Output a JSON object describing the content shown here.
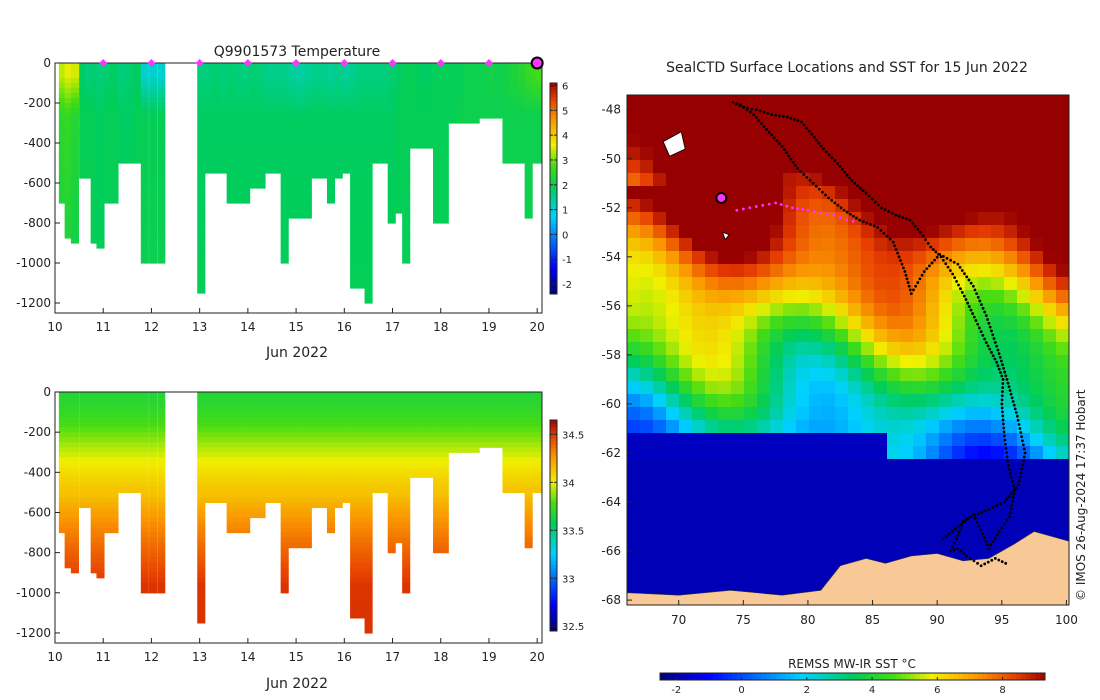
{
  "credit": "© IMOS 26-Aug-2024 17:37 Hobart",
  "colors": {
    "land": "#f8c997",
    "no_data": "#ffffff"
  },
  "chart_data": [
    {
      "type": "heatmap",
      "panel": "temperature-section",
      "title": "Q9901573  Temperature",
      "xlabel": "Jun 2022",
      "ylabel": "",
      "x_ticks": [
        "10",
        "11",
        "12",
        "13",
        "14",
        "15",
        "16",
        "17",
        "18",
        "19",
        "20"
      ],
      "xlim": [
        10,
        20.1
      ],
      "y_ticks": [
        "0",
        "-200",
        "-400",
        "-600",
        "-800",
        "-1000",
        "-1200"
      ],
      "ylim": [
        -1250,
        0
      ],
      "colorbar": {
        "ticks": [
          "6",
          "5",
          "4",
          "3",
          "2",
          "1",
          "0",
          "-1",
          "-2"
        ],
        "range": [
          -2.4,
          6.1
        ],
        "colormap": "jet"
      },
      "marker_days": [
        11,
        12,
        13,
        14,
        15,
        16,
        17,
        18,
        19
      ],
      "marker_color": "#ff33ff",
      "current_day": 20,
      "profiles": [
        {
          "t": 10.08,
          "depth": 700,
          "top": 3.3,
          "mid": 2.4,
          "bot": 2.1
        },
        {
          "t": 10.2,
          "depth": 870,
          "top": 3.5,
          "mid": 2.5,
          "bot": 2.1
        },
        {
          "t": 10.33,
          "depth": 900,
          "top": 3.4,
          "mid": 2.3,
          "bot": 2.0
        },
        {
          "t": 10.5,
          "depth": 560,
          "top": 1.8,
          "mid": 1.9,
          "bot": 2.0
        },
        {
          "t": 10.62,
          "depth": 560,
          "top": 1.6,
          "mid": 1.9,
          "bot": 2.0
        },
        {
          "t": 10.74,
          "depth": 880,
          "top": 1.7,
          "mid": 1.9,
          "bot": 1.9
        },
        {
          "t": 10.86,
          "depth": 910,
          "top": 1.6,
          "mid": 1.8,
          "bot": 1.9
        },
        {
          "t": 11.0,
          "depth": 700,
          "top": 1.7,
          "mid": 1.9,
          "bot": 1.9
        },
        {
          "t": 11.15,
          "depth": 700,
          "top": 1.8,
          "mid": 1.9,
          "bot": 1.9
        },
        {
          "t": 11.3,
          "depth": 500,
          "top": 1.6,
          "mid": 1.8,
          "bot": 1.9
        },
        {
          "t": 11.46,
          "depth": 500,
          "top": 1.7,
          "mid": 1.8,
          "bot": 1.9
        },
        {
          "t": 11.62,
          "depth": 480,
          "top": 1.8,
          "mid": 1.9,
          "bot": 1.9
        },
        {
          "t": 11.78,
          "depth": 1000,
          "top": 1.0,
          "mid": 1.9,
          "bot": 2.0
        },
        {
          "t": 11.95,
          "depth": 1000,
          "top": 1.0,
          "mid": 1.9,
          "bot": 2.0
        },
        {
          "t": 12.12,
          "depth": 1000,
          "top": 1.0,
          "mid": 1.9,
          "bot": 2.0
        },
        {
          "t": 12.95,
          "depth": 1130,
          "top": 1.6,
          "mid": 1.8,
          "bot": 1.9
        },
        {
          "t": 13.1,
          "depth": 530,
          "top": 1.6,
          "mid": 1.8,
          "bot": 1.9
        },
        {
          "t": 13.25,
          "depth": 530,
          "top": 1.7,
          "mid": 1.8,
          "bot": 1.9
        },
        {
          "t": 13.4,
          "depth": 550,
          "top": 1.6,
          "mid": 1.8,
          "bot": 1.9
        },
        {
          "t": 13.56,
          "depth": 700,
          "top": 1.7,
          "mid": 1.8,
          "bot": 1.9
        },
        {
          "t": 13.72,
          "depth": 700,
          "top": 1.6,
          "mid": 1.8,
          "bot": 1.9
        },
        {
          "t": 13.88,
          "depth": 700,
          "top": 1.6,
          "mid": 1.8,
          "bot": 1.9
        },
        {
          "t": 14.04,
          "depth": 620,
          "top": 1.7,
          "mid": 1.8,
          "bot": 1.9
        },
        {
          "t": 14.2,
          "depth": 620,
          "top": 1.6,
          "mid": 1.8,
          "bot": 1.9
        },
        {
          "t": 14.36,
          "depth": 550,
          "top": 1.5,
          "mid": 1.8,
          "bot": 1.9
        },
        {
          "t": 14.52,
          "depth": 550,
          "top": 1.5,
          "mid": 1.8,
          "bot": 1.9
        },
        {
          "t": 14.68,
          "depth": 1000,
          "top": 1.5,
          "mid": 1.8,
          "bot": 1.9
        },
        {
          "t": 14.84,
          "depth": 770,
          "top": 1.4,
          "mid": 1.8,
          "bot": 1.9
        },
        {
          "t": 15.0,
          "depth": 770,
          "top": 1.3,
          "mid": 1.8,
          "bot": 1.9
        },
        {
          "t": 15.16,
          "depth": 770,
          "top": 1.4,
          "mid": 1.8,
          "bot": 1.9
        },
        {
          "t": 15.32,
          "depth": 560,
          "top": 1.5,
          "mid": 1.8,
          "bot": 1.9
        },
        {
          "t": 15.48,
          "depth": 560,
          "top": 1.5,
          "mid": 1.8,
          "bot": 1.9
        },
        {
          "t": 15.64,
          "depth": 700,
          "top": 1.4,
          "mid": 1.8,
          "bot": 1.9
        },
        {
          "t": 15.8,
          "depth": 560,
          "top": 1.5,
          "mid": 1.8,
          "bot": 1.9
        },
        {
          "t": 15.96,
          "depth": 540,
          "top": 1.4,
          "mid": 1.8,
          "bot": 1.9
        },
        {
          "t": 16.12,
          "depth": 1120,
          "top": 1.5,
          "mid": 1.8,
          "bot": 1.9
        },
        {
          "t": 16.28,
          "depth": 1120,
          "top": 1.6,
          "mid": 1.8,
          "bot": 1.9
        },
        {
          "t": 16.42,
          "depth": 1200,
          "top": 1.6,
          "mid": 1.8,
          "bot": 1.9
        },
        {
          "t": 16.58,
          "depth": 500,
          "top": 1.6,
          "mid": 1.8,
          "bot": 1.9
        },
        {
          "t": 16.74,
          "depth": 500,
          "top": 1.6,
          "mid": 1.8,
          "bot": 1.9
        },
        {
          "t": 16.9,
          "depth": 780,
          "top": 1.7,
          "mid": 1.8,
          "bot": 1.9
        },
        {
          "t": 17.06,
          "depth": 750,
          "top": 1.8,
          "mid": 1.9,
          "bot": 1.9
        },
        {
          "t": 17.2,
          "depth": 990,
          "top": 1.9,
          "mid": 1.9,
          "bot": 1.9
        },
        {
          "t": 17.36,
          "depth": 420,
          "top": 1.9,
          "mid": 1.9,
          "bot": 1.9
        },
        {
          "t": 17.52,
          "depth": 420,
          "top": 1.8,
          "mid": 1.9,
          "bot": 1.9
        },
        {
          "t": 17.68,
          "depth": 420,
          "top": 1.8,
          "mid": 1.9,
          "bot": 1.9
        },
        {
          "t": 17.84,
          "depth": 800,
          "top": 1.9,
          "mid": 1.9,
          "bot": 1.9
        },
        {
          "t": 18.0,
          "depth": 800,
          "top": 1.9,
          "mid": 1.9,
          "bot": 1.9
        },
        {
          "t": 18.16,
          "depth": 300,
          "top": 1.9,
          "mid": 1.9,
          "bot": 1.9
        },
        {
          "t": 18.32,
          "depth": 300,
          "top": 1.9,
          "mid": 2.0,
          "bot": 2.0
        },
        {
          "t": 18.48,
          "depth": 300,
          "top": 2.0,
          "mid": 2.0,
          "bot": 2.0
        },
        {
          "t": 18.64,
          "depth": 280,
          "top": 2.0,
          "mid": 2.0,
          "bot": 2.0
        },
        {
          "t": 18.8,
          "depth": 260,
          "top": 2.0,
          "mid": 2.0,
          "bot": 2.0
        },
        {
          "t": 18.96,
          "depth": 260,
          "top": 2.1,
          "mid": 2.0,
          "bot": 2.0
        },
        {
          "t": 19.12,
          "depth": 260,
          "top": 2.0,
          "mid": 2.0,
          "bot": 2.0
        },
        {
          "t": 19.28,
          "depth": 480,
          "top": 2.1,
          "mid": 2.0,
          "bot": 2.0
        },
        {
          "t": 19.44,
          "depth": 480,
          "top": 2.2,
          "mid": 2.0,
          "bot": 2.0
        },
        {
          "t": 19.6,
          "depth": 500,
          "top": 2.3,
          "mid": 2.0,
          "bot": 2.0
        },
        {
          "t": 19.74,
          "depth": 770,
          "top": 2.5,
          "mid": 2.0,
          "bot": 2.0
        },
        {
          "t": 19.88,
          "depth": 500,
          "top": 2.6,
          "mid": 2.0,
          "bot": 2.0
        },
        {
          "t": 20.0,
          "depth": 500,
          "top": 2.7,
          "mid": 2.0,
          "bot": 2.0
        }
      ]
    },
    {
      "type": "heatmap",
      "panel": "salinity-section",
      "title": "",
      "xlabel": "Jun 2022",
      "ylabel": "",
      "x_ticks": [
        "10",
        "11",
        "12",
        "13",
        "14",
        "15",
        "16",
        "17",
        "18",
        "19",
        "20"
      ],
      "xlim": [
        10,
        20.1
      ],
      "y_ticks": [
        "0",
        "-200",
        "-400",
        "-600",
        "-800",
        "-1000",
        "-1200"
      ],
      "ylim": [
        -1250,
        0
      ],
      "colorbar": {
        "ticks": [
          "34.5",
          "34",
          "33.5",
          "33",
          "32.5"
        ],
        "range": [
          32.45,
          34.65
        ],
        "colormap": "jet"
      },
      "profile_source": "temperature-section",
      "salinity_profile": {
        "surface": 33.6,
        "halocline_depth": 260,
        "deep": 34.2
      }
    },
    {
      "type": "heatmap",
      "panel": "sst-map",
      "title": "SealCTD Surface Locations and SST for 15 Jun 2022",
      "xlabel": "",
      "ylabel": "",
      "x_ticks": [
        "70",
        "75",
        "80",
        "85",
        "90",
        "95",
        "100"
      ],
      "xlim": [
        66,
        100.2
      ],
      "y_ticks": [
        "-48",
        "-50",
        "-52",
        "-54",
        "-56",
        "-58",
        "-60",
        "-62",
        "-64",
        "-66",
        "-68"
      ],
      "ylim": [
        -68.2,
        -47.4
      ],
      "colorbar": {
        "label": "REMSS MW-IR SST °C",
        "ticks": [
          "-2",
          "0",
          "2",
          "4",
          "6",
          "8"
        ],
        "range": [
          -2.5,
          9.3
        ],
        "colormap": "jet"
      },
      "track": [
        [
          95.3,
          -66.5
        ],
        [
          94.5,
          -66.3
        ],
        [
          93.4,
          -66.6
        ],
        [
          92.3,
          -66.2
        ],
        [
          91.6,
          -65.9
        ],
        [
          91.0,
          -66.0
        ],
        [
          91.5,
          -65.5
        ],
        [
          92.0,
          -64.8
        ],
        [
          92.8,
          -64.5
        ],
        [
          93.5,
          -65.3
        ],
        [
          94.0,
          -65.9
        ],
        [
          94.8,
          -65.2
        ],
        [
          95.6,
          -64.6
        ],
        [
          96.0,
          -63.5
        ],
        [
          95.5,
          -62.5
        ],
        [
          95.2,
          -61.3
        ],
        [
          95.0,
          -60.0
        ],
        [
          95.1,
          -59.0
        ],
        [
          94.6,
          -58.3
        ],
        [
          93.8,
          -57.5
        ],
        [
          93.0,
          -56.6
        ],
        [
          92.1,
          -55.6
        ],
        [
          91.2,
          -54.7
        ],
        [
          90.3,
          -54.0
        ],
        [
          89.5,
          -53.6
        ],
        [
          88.7,
          -53.0
        ],
        [
          87.9,
          -52.5
        ],
        [
          86.8,
          -52.3
        ],
        [
          85.7,
          -52.0
        ],
        [
          84.5,
          -51.4
        ],
        [
          83.4,
          -50.9
        ],
        [
          82.3,
          -50.2
        ],
        [
          81.2,
          -49.6
        ],
        [
          80.3,
          -49.0
        ],
        [
          79.5,
          -48.5
        ],
        [
          78.4,
          -48.3
        ],
        [
          77.2,
          -48.2
        ],
        [
          76.0,
          -48.0
        ],
        [
          75.0,
          -47.9
        ],
        [
          74.2,
          -47.7
        ],
        [
          74.8,
          -47.8
        ],
        [
          75.8,
          -48.2
        ],
        [
          76.8,
          -48.8
        ],
        [
          78.0,
          -49.5
        ],
        [
          79.2,
          -50.4
        ],
        [
          80.4,
          -51.0
        ],
        [
          81.6,
          -51.6
        ],
        [
          82.8,
          -52.1
        ],
        [
          84.0,
          -52.5
        ],
        [
          85.4,
          -52.8
        ],
        [
          86.6,
          -53.4
        ],
        [
          87.5,
          -54.6
        ],
        [
          88.0,
          -55.5
        ],
        [
          89.0,
          -54.6
        ],
        [
          90.2,
          -53.9
        ],
        [
          91.6,
          -54.3
        ],
        [
          92.8,
          -55.2
        ],
        [
          93.8,
          -56.4
        ],
        [
          94.7,
          -57.8
        ],
        [
          95.4,
          -59.0
        ],
        [
          96.2,
          -60.5
        ],
        [
          96.8,
          -62.0
        ],
        [
          96.3,
          -63.3
        ],
        [
          95.2,
          -64.0
        ],
        [
          94.0,
          -64.3
        ],
        [
          92.6,
          -64.6
        ],
        [
          91.4,
          -65.1
        ],
        [
          90.2,
          -65.6
        ]
      ],
      "recent_track": [
        [
          74.5,
          -52.1
        ],
        [
          75.5,
          -52.0
        ],
        [
          76.5,
          -51.9
        ],
        [
          77.5,
          -51.8
        ],
        [
          78.8,
          -52.0
        ],
        [
          80.0,
          -52.1
        ],
        [
          81.0,
          -52.2
        ],
        [
          82.0,
          -52.3
        ],
        [
          83.0,
          -52.5
        ],
        [
          84.0,
          -52.6
        ]
      ],
      "current_position": [
        73.3,
        -51.6
      ]
    }
  ]
}
